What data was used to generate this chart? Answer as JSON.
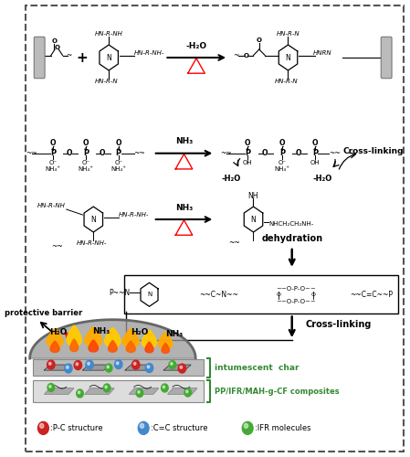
{
  "bg_color": "#ffffff",
  "border_color": "#555555",
  "fig_width": 4.49,
  "fig_height": 5.0,
  "dpi": 100,
  "legend_items": [
    {
      "color": "#cc2222",
      "label": ":P-C structure"
    },
    {
      "color": "#4488cc",
      "label": ":C=C structure"
    },
    {
      "color": "#44aa33",
      "label": ":IFR molecules"
    }
  ],
  "green_label_color": "#338833",
  "fs_small": 5.5,
  "fs_med": 6.5,
  "fs_large": 7.5
}
